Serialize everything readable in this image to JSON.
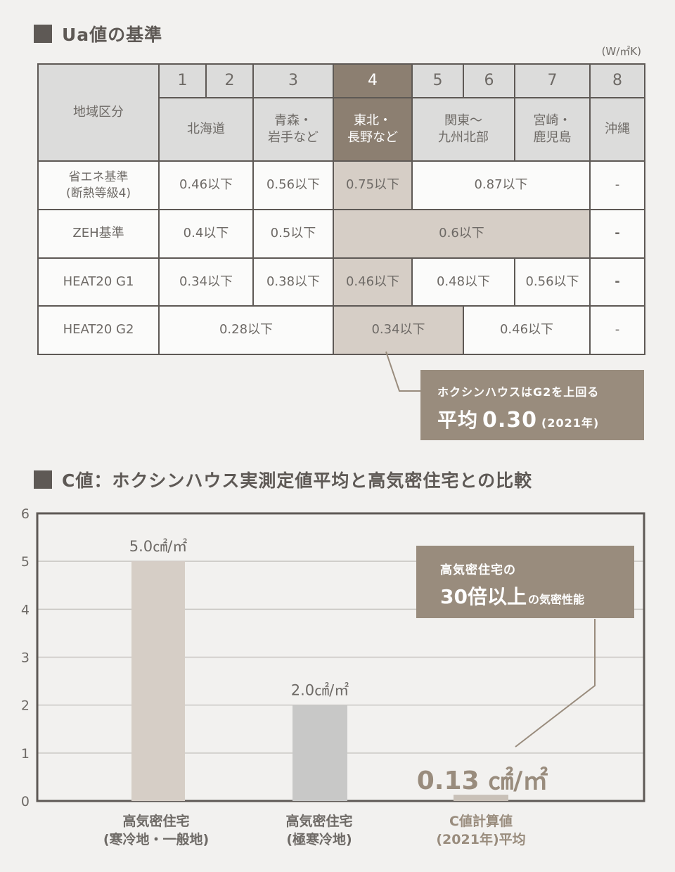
{
  "ua": {
    "title": "Ua値の基準",
    "unit": "(W/㎡K)",
    "region_header": "地域区分",
    "zones": [
      "1",
      "2",
      "3",
      "4",
      "5",
      "6",
      "7",
      "8"
    ],
    "region_names": {
      "hokkaido": "北海道",
      "aomori_1": "青森・",
      "aomori_2": "岩手など",
      "tohoku_1": "東北・",
      "tohoku_2": "長野など",
      "kanto_1": "関東〜",
      "kanto_2": "九州北部",
      "miyazaki_1": "宮崎・",
      "miyazaki_2": "鹿児島",
      "okinawa": "沖縄"
    },
    "rows": {
      "energy_label_1": "省エネ基準",
      "energy_label_2": "(断熱等級4)",
      "energy_z12": "0.46以下",
      "energy_z3": "0.56以下",
      "energy_z4": "0.75以下",
      "energy_z567": "0.87以下",
      "energy_z8": "-",
      "zeh_label": "ZEH基準",
      "zeh_z12": "0.4以下",
      "zeh_z3": "0.5以下",
      "zeh_z4567": "0.6以下",
      "zeh_z8": "-",
      "g1_label": "HEAT20 G1",
      "g1_z12": "0.34以下",
      "g1_z3": "0.38以下",
      "g1_z4": "0.46以下",
      "g1_z56": "0.48以下",
      "g1_z7": "0.56以下",
      "g1_z8": "-",
      "g2_label": "HEAT20 G2",
      "g2_z123": "0.28以下",
      "g2_z45": "0.34以下",
      "g2_z67": "0.46以下",
      "g2_z8": "-"
    },
    "callout": {
      "line1": "ホクシンハウスはG2を上回る",
      "prefix": "平均",
      "value": "0.30",
      "year": "(2021年)"
    }
  },
  "c": {
    "title": "C値：ホクシンハウス実測定値平均と高気密住宅との比較",
    "callout": {
      "line1": "高気密住宅の",
      "big": "30倍以上",
      "small": "の気密性能"
    },
    "categories": [
      {
        "line1": "高気密住宅",
        "line2": "(寒冷地・一般地)"
      },
      {
        "line1": "高気密住宅",
        "line2": "(極寒冷地)"
      },
      {
        "line1": "C値計算値",
        "line2": "(2021年)平均"
      }
    ]
  },
  "chart_data": {
    "type": "bar",
    "title": "C値：ホクシンハウス実測定値平均と高気密住宅との比較",
    "categories": [
      "高気密住宅(寒冷地・一般地)",
      "高気密住宅(極寒冷地)",
      "C値計算値(2021年)平均"
    ],
    "values": [
      5.0,
      2.0,
      0.13
    ],
    "data_labels": [
      "5.0㎠/㎡",
      "2.0㎠/㎡",
      "0.13 ㎠/㎡"
    ],
    "bar_colors": [
      "#d6cec6",
      "#c8c8c7",
      "#c9c1b8"
    ],
    "ylim": [
      0,
      6
    ],
    "yticks": [
      "0",
      "1",
      "2",
      "3",
      "4",
      "5",
      "6"
    ],
    "grid": true,
    "xlabel": "",
    "ylabel": ""
  }
}
